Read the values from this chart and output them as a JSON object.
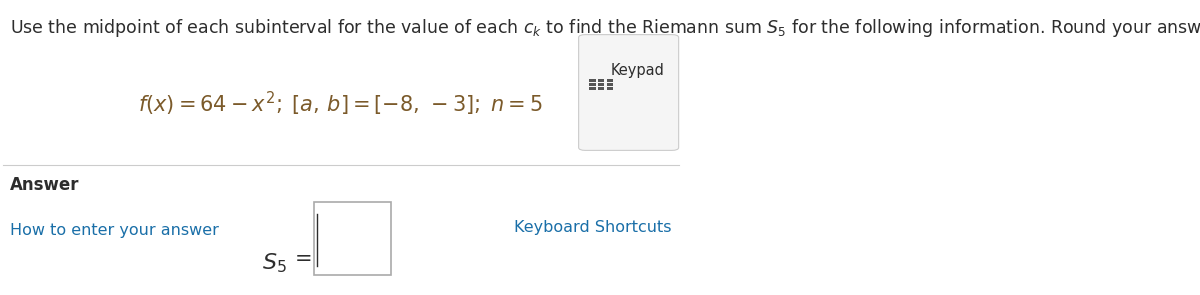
{
  "background_color": "#ffffff",
  "instruction_full": "Use the midpoint of each subinterval for the value of each $c_k$ to find the Riemann sum $S_5$ for the following information. Round your answer to the nearest hundredth.",
  "formula_text": "$f(x) = 64 - x^2;\\; [a,\\, b] = [-8,\\, -3];\\; n = 5$",
  "answer_label": "Answer",
  "how_to_label": "How to enter your answer",
  "keypad_label": "Keypad",
  "keyboard_shortcuts_label": "Keyboard Shortcuts",
  "text_color_dark": "#2d2d2d",
  "text_color_blue": "#1a6fa8",
  "text_color_formula": "#7b5a2a",
  "divider_color": "#cccccc",
  "input_box_color": "#ffffff",
  "input_box_border": "#aaaaaa",
  "keypad_box_border": "#cccccc",
  "keypad_box_face": "#f5f5f5",
  "keypad_icon_color": "#555555",
  "font_size_instruction": 12.5,
  "font_size_formula": 15,
  "font_size_answer": 12,
  "font_size_s5": 15
}
